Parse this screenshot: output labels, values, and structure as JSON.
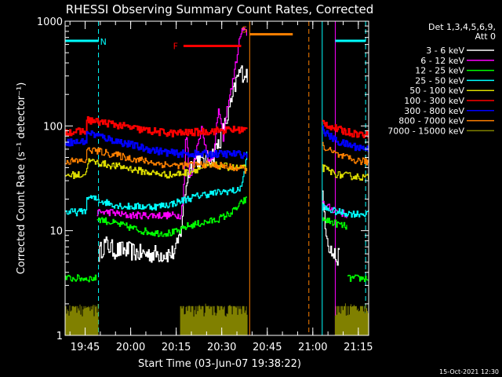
{
  "chart_data": {
    "type": "line",
    "title": "RHESSI Observing Summary Count Rates, Corrected",
    "xlabel": "Start Time (03-Jun-07 19:38:22)",
    "ylabel": "Corrected Count Rate (s⁻¹ detector⁻¹)",
    "ylog": true,
    "ylim": [
      1,
      1000
    ],
    "xlim_minutes": [
      0,
      100
    ],
    "x_unit": "minutes after 19:38:22",
    "y_ticks": [
      1,
      10,
      100,
      1000
    ],
    "x_ticks": [
      {
        "label": "19:45",
        "minute": 6.6
      },
      {
        "label": "20:00",
        "minute": 21.6
      },
      {
        "label": "20:15",
        "minute": 36.6
      },
      {
        "label": "20:30",
        "minute": 51.6
      },
      {
        "label": "20:45",
        "minute": 66.6
      },
      {
        "label": "21:00",
        "minute": 81.6
      },
      {
        "label": "21:15",
        "minute": 96.6
      }
    ],
    "legend_header": [
      "Det 1,3,4,5,6,9,",
      "Att 0"
    ],
    "legend_placement": "right",
    "series": [
      {
        "name": "3 - 6 keV",
        "color": "#ffffff",
        "segments": [
          {
            "x": [
              11.0,
              13.0,
              16.0,
              20.0,
              25.0,
              30.0,
              35.0,
              36.5,
              38.0,
              39.0,
              39.8,
              41.0,
              43.0,
              45.0,
              47.0,
              49.0,
              51.0,
              53.0,
              55.0,
              56.5,
              57.5,
              58.5,
              59.5,
              60.0
            ],
            "y": [
              6,
              7.5,
              6.5,
              6.5,
              6,
              6,
              6,
              6.5,
              10,
              18,
              28,
              40,
              50,
              45,
              48,
              55,
              75,
              110,
              180,
              280,
              330,
              320,
              320,
              310
            ]
          },
          {
            "x": [
              84.7,
              85.3,
              86.0,
              87.0,
              88.0,
              89.5,
              90.5
            ],
            "y": [
              20,
              15,
              10,
              7,
              6,
              5.5,
              5.5
            ]
          }
        ]
      },
      {
        "name": "6 - 12 keV",
        "color": "#ff00ff",
        "segments": [
          {
            "x": [
              10.5,
              15.0,
              20.0,
              25.0,
              30.0,
              35.0,
              38.0,
              38.8,
              39.8,
              41.0,
              43.0,
              45.0,
              47.0,
              49.0,
              50.5,
              52.0,
              53.5,
              55.0,
              56.5,
              57.5,
              58.3,
              59.0,
              59.5,
              60.0
            ],
            "y": [
              15,
              15,
              14,
              14,
              14,
              14,
              14,
              20,
              90,
              30,
              55,
              100,
              45,
              55,
              150,
              75,
              160,
              250,
              450,
              700,
              820,
              800,
              780,
              760
            ]
          },
          {
            "x": [
              84.7,
              86.0,
              88.0,
              90.0,
              92.0,
              93.0
            ],
            "y": [
              19,
              17,
              16,
              15,
              14.5,
              14
            ]
          }
        ]
      },
      {
        "name": "12 - 25 keV",
        "color": "#00ff00",
        "segments": [
          {
            "x": [
              0.0,
              10.5
            ],
            "y": [
              3.5,
              3.5
            ]
          },
          {
            "x": [
              10.5,
              11.0,
              15.0,
              20.0,
              25.0,
              30.0,
              35.0,
              38.0,
              40.0,
              43.0,
              46.0,
              49.0,
              52.0,
              55.0,
              57.0,
              58.5,
              60.0
            ],
            "y": [
              13,
              13,
              12,
              11,
              10,
              9.5,
              9.5,
              10,
              11,
              11.5,
              12,
              12.5,
              13.5,
              15,
              17,
              19,
              20
            ]
          },
          {
            "x": [
              84.7,
              86.0,
              88.0,
              90.0,
              92.0,
              93.0
            ],
            "y": [
              13,
              12.5,
              12,
              11.5,
              11,
              11
            ]
          },
          {
            "x": [
              93.0,
              100.0
            ],
            "y": [
              3.5,
              3.5
            ]
          }
        ]
      },
      {
        "name": "25 - 50 keV",
        "color": "#00ffff",
        "segments": [
          {
            "x": [
              0.0,
              5.0,
              7.0,
              7.2,
              10.0,
              15.0,
              20.0,
              25.0,
              30.0,
              35.0,
              40.0,
              45.0,
              50.0,
              54.0,
              57.0,
              58.5,
              59.5,
              60.0
            ],
            "y": [
              15,
              15,
              16,
              21,
              20,
              18,
              17,
              17,
              17,
              18,
              20,
              22,
              23,
              24,
              24,
              30,
              45,
              60
            ]
          },
          {
            "x": [
              84.7,
              86.0,
              88.0,
              90.0,
              95.0,
              100.0
            ],
            "y": [
              17,
              16,
              15.5,
              15,
              14.5,
              14.5
            ]
          }
        ]
      },
      {
        "name": "50 - 100 keV",
        "color": "#dddd00",
        "segments": [
          {
            "x": [
              0.0,
              5.0,
              7.0,
              7.2,
              10.0,
              15.0,
              20.0,
              25.0,
              30.0,
              35.0,
              40.0,
              45.0,
              50.0,
              55.0,
              60.0
            ],
            "y": [
              34,
              34,
              35,
              46,
              45,
              42,
              40,
              37,
              35,
              34,
              36,
              40,
              42,
              40,
              39
            ]
          },
          {
            "x": [
              84.7,
              87.0,
              90.0,
              95.0,
              100.0
            ],
            "y": [
              40,
              37,
              34,
              33,
              32
            ]
          }
        ]
      },
      {
        "name": "100 - 300 keV",
        "color": "#ff0000",
        "segments": [
          {
            "x": [
              0.0,
              5.0,
              7.0,
              7.2,
              10.0,
              15.0,
              20.0,
              25.0,
              30.0,
              35.0,
              40.0,
              45.0,
              50.0,
              55.0,
              60.0
            ],
            "y": [
              88,
              88,
              90,
              115,
              110,
              105,
              98,
              92,
              88,
              85,
              86,
              88,
              90,
              92,
              92
            ]
          },
          {
            "x": [
              84.7,
              87.0,
              90.0,
              95.0,
              100.0
            ],
            "y": [
              110,
              100,
              92,
              85,
              82
            ]
          }
        ]
      },
      {
        "name": "300 - 800 keV",
        "color": "#0000ff",
        "segments": [
          {
            "x": [
              0.0,
              5.0,
              7.0,
              7.2,
              10.0,
              15.0,
              20.0,
              25.0,
              30.0,
              35.0,
              40.0,
              45.0,
              50.0,
              55.0,
              60.0
            ],
            "y": [
              70,
              70,
              72,
              88,
              82,
              74,
              68,
              62,
              58,
              55,
              54,
              54,
              54,
              54,
              53
            ]
          },
          {
            "x": [
              84.7,
              87.0,
              90.0,
              95.0,
              100.0
            ],
            "y": [
              92,
              80,
              70,
              64,
              60
            ]
          }
        ]
      },
      {
        "name": "800 - 7000 keV",
        "color": "#ff8000",
        "segments": [
          {
            "x": [
              0.0,
              5.0,
              7.0,
              7.2,
              10.0,
              15.0,
              20.0,
              25.0,
              30.0,
              35.0,
              40.0,
              45.0,
              50.0,
              55.0,
              60.0
            ],
            "y": [
              46,
              46,
              47,
              60,
              58,
              54,
              50,
              47,
              44,
              42,
              42,
              43,
              42,
              40,
              38
            ]
          },
          {
            "x": [
              84.7,
              87.0,
              90.0,
              95.0,
              100.0
            ],
            "y": [
              65,
              58,
              52,
              47,
              45
            ]
          }
        ]
      },
      {
        "name": "7000 - 15000 keV",
        "color": "#808000",
        "segments": [
          {
            "x": [
              0.0,
              11.0
            ],
            "y": [
              1.5,
              1.5
            ]
          },
          {
            "x": [
              38.0,
              60.0
            ],
            "y": [
              1.5,
              1.5
            ]
          },
          {
            "x": [
              89.0,
              100.0
            ],
            "y": [
              1.5,
              1.5
            ]
          }
        ]
      }
    ],
    "annotations": [
      {
        "label": "N",
        "color": "#00ffff",
        "y": 650,
        "segments": [
          [
            0.0,
            11.0
          ],
          [
            89.0,
            99.0
          ]
        ]
      },
      {
        "label": "F",
        "color": "#ff0000",
        "y": 580,
        "segments": [
          [
            39.0,
            58.0
          ]
        ]
      },
      {
        "label": "S",
        "color": "#ff8000",
        "y": 750,
        "segments": [
          [
            60.8,
            75.0
          ]
        ]
      }
    ],
    "vertical_markers": [
      {
        "color": "#00ffff",
        "style": "dashed",
        "x": 11.0
      },
      {
        "color": "#00ffff",
        "style": "solid",
        "x": 84.7
      },
      {
        "color": "#00ffff",
        "style": "dashed",
        "x": 99.0
      },
      {
        "color": "#ff8000",
        "style": "solid",
        "x": 60.8
      },
      {
        "color": "#ff8000",
        "style": "dashed",
        "x": 80.3
      },
      {
        "color": "#ff00ff",
        "style": "solid",
        "x": 89.0
      }
    ]
  },
  "footer": {
    "timestamp": "15-Oct-2021 12:30"
  }
}
